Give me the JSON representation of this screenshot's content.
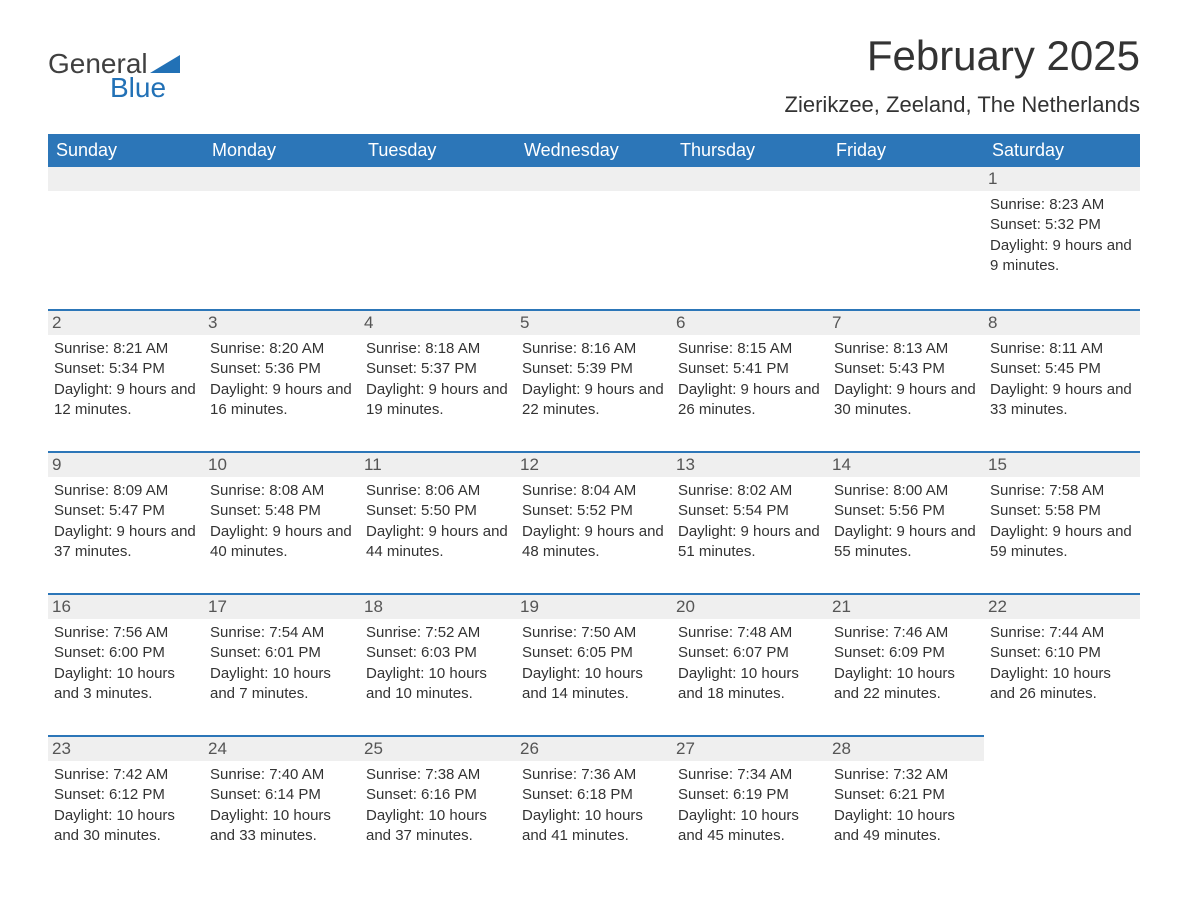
{
  "logo": {
    "text1": "General",
    "text2": "Blue",
    "tri_color": "#2271b6"
  },
  "header": {
    "title": "February 2025",
    "location": "Zierikzee, Zeeland, The Netherlands"
  },
  "colors": {
    "header_bg": "#2c76b8",
    "header_text": "#ffffff",
    "row_border": "#2c76b8",
    "daynum_bg": "#efefef"
  },
  "weekdays": [
    "Sunday",
    "Monday",
    "Tuesday",
    "Wednesday",
    "Thursday",
    "Friday",
    "Saturday"
  ],
  "weeks": [
    [
      null,
      null,
      null,
      null,
      null,
      null,
      {
        "n": "1",
        "sr": "Sunrise: 8:23 AM",
        "ss": "Sunset: 5:32 PM",
        "dl": "Daylight: 9 hours and 9 minutes."
      }
    ],
    [
      {
        "n": "2",
        "sr": "Sunrise: 8:21 AM",
        "ss": "Sunset: 5:34 PM",
        "dl": "Daylight: 9 hours and 12 minutes."
      },
      {
        "n": "3",
        "sr": "Sunrise: 8:20 AM",
        "ss": "Sunset: 5:36 PM",
        "dl": "Daylight: 9 hours and 16 minutes."
      },
      {
        "n": "4",
        "sr": "Sunrise: 8:18 AM",
        "ss": "Sunset: 5:37 PM",
        "dl": "Daylight: 9 hours and 19 minutes."
      },
      {
        "n": "5",
        "sr": "Sunrise: 8:16 AM",
        "ss": "Sunset: 5:39 PM",
        "dl": "Daylight: 9 hours and 22 minutes."
      },
      {
        "n": "6",
        "sr": "Sunrise: 8:15 AM",
        "ss": "Sunset: 5:41 PM",
        "dl": "Daylight: 9 hours and 26 minutes."
      },
      {
        "n": "7",
        "sr": "Sunrise: 8:13 AM",
        "ss": "Sunset: 5:43 PM",
        "dl": "Daylight: 9 hours and 30 minutes."
      },
      {
        "n": "8",
        "sr": "Sunrise: 8:11 AM",
        "ss": "Sunset: 5:45 PM",
        "dl": "Daylight: 9 hours and 33 minutes."
      }
    ],
    [
      {
        "n": "9",
        "sr": "Sunrise: 8:09 AM",
        "ss": "Sunset: 5:47 PM",
        "dl": "Daylight: 9 hours and 37 minutes."
      },
      {
        "n": "10",
        "sr": "Sunrise: 8:08 AM",
        "ss": "Sunset: 5:48 PM",
        "dl": "Daylight: 9 hours and 40 minutes."
      },
      {
        "n": "11",
        "sr": "Sunrise: 8:06 AM",
        "ss": "Sunset: 5:50 PM",
        "dl": "Daylight: 9 hours and 44 minutes."
      },
      {
        "n": "12",
        "sr": "Sunrise: 8:04 AM",
        "ss": "Sunset: 5:52 PM",
        "dl": "Daylight: 9 hours and 48 minutes."
      },
      {
        "n": "13",
        "sr": "Sunrise: 8:02 AM",
        "ss": "Sunset: 5:54 PM",
        "dl": "Daylight: 9 hours and 51 minutes."
      },
      {
        "n": "14",
        "sr": "Sunrise: 8:00 AM",
        "ss": "Sunset: 5:56 PM",
        "dl": "Daylight: 9 hours and 55 minutes."
      },
      {
        "n": "15",
        "sr": "Sunrise: 7:58 AM",
        "ss": "Sunset: 5:58 PM",
        "dl": "Daylight: 9 hours and 59 minutes."
      }
    ],
    [
      {
        "n": "16",
        "sr": "Sunrise: 7:56 AM",
        "ss": "Sunset: 6:00 PM",
        "dl": "Daylight: 10 hours and 3 minutes."
      },
      {
        "n": "17",
        "sr": "Sunrise: 7:54 AM",
        "ss": "Sunset: 6:01 PM",
        "dl": "Daylight: 10 hours and 7 minutes."
      },
      {
        "n": "18",
        "sr": "Sunrise: 7:52 AM",
        "ss": "Sunset: 6:03 PM",
        "dl": "Daylight: 10 hours and 10 minutes."
      },
      {
        "n": "19",
        "sr": "Sunrise: 7:50 AM",
        "ss": "Sunset: 6:05 PM",
        "dl": "Daylight: 10 hours and 14 minutes."
      },
      {
        "n": "20",
        "sr": "Sunrise: 7:48 AM",
        "ss": "Sunset: 6:07 PM",
        "dl": "Daylight: 10 hours and 18 minutes."
      },
      {
        "n": "21",
        "sr": "Sunrise: 7:46 AM",
        "ss": "Sunset: 6:09 PM",
        "dl": "Daylight: 10 hours and 22 minutes."
      },
      {
        "n": "22",
        "sr": "Sunrise: 7:44 AM",
        "ss": "Sunset: 6:10 PM",
        "dl": "Daylight: 10 hours and 26 minutes."
      }
    ],
    [
      {
        "n": "23",
        "sr": "Sunrise: 7:42 AM",
        "ss": "Sunset: 6:12 PM",
        "dl": "Daylight: 10 hours and 30 minutes."
      },
      {
        "n": "24",
        "sr": "Sunrise: 7:40 AM",
        "ss": "Sunset: 6:14 PM",
        "dl": "Daylight: 10 hours and 33 minutes."
      },
      {
        "n": "25",
        "sr": "Sunrise: 7:38 AM",
        "ss": "Sunset: 6:16 PM",
        "dl": "Daylight: 10 hours and 37 minutes."
      },
      {
        "n": "26",
        "sr": "Sunrise: 7:36 AM",
        "ss": "Sunset: 6:18 PM",
        "dl": "Daylight: 10 hours and 41 minutes."
      },
      {
        "n": "27",
        "sr": "Sunrise: 7:34 AM",
        "ss": "Sunset: 6:19 PM",
        "dl": "Daylight: 10 hours and 45 minutes."
      },
      {
        "n": "28",
        "sr": "Sunrise: 7:32 AM",
        "ss": "Sunset: 6:21 PM",
        "dl": "Daylight: 10 hours and 49 minutes."
      },
      null
    ]
  ]
}
